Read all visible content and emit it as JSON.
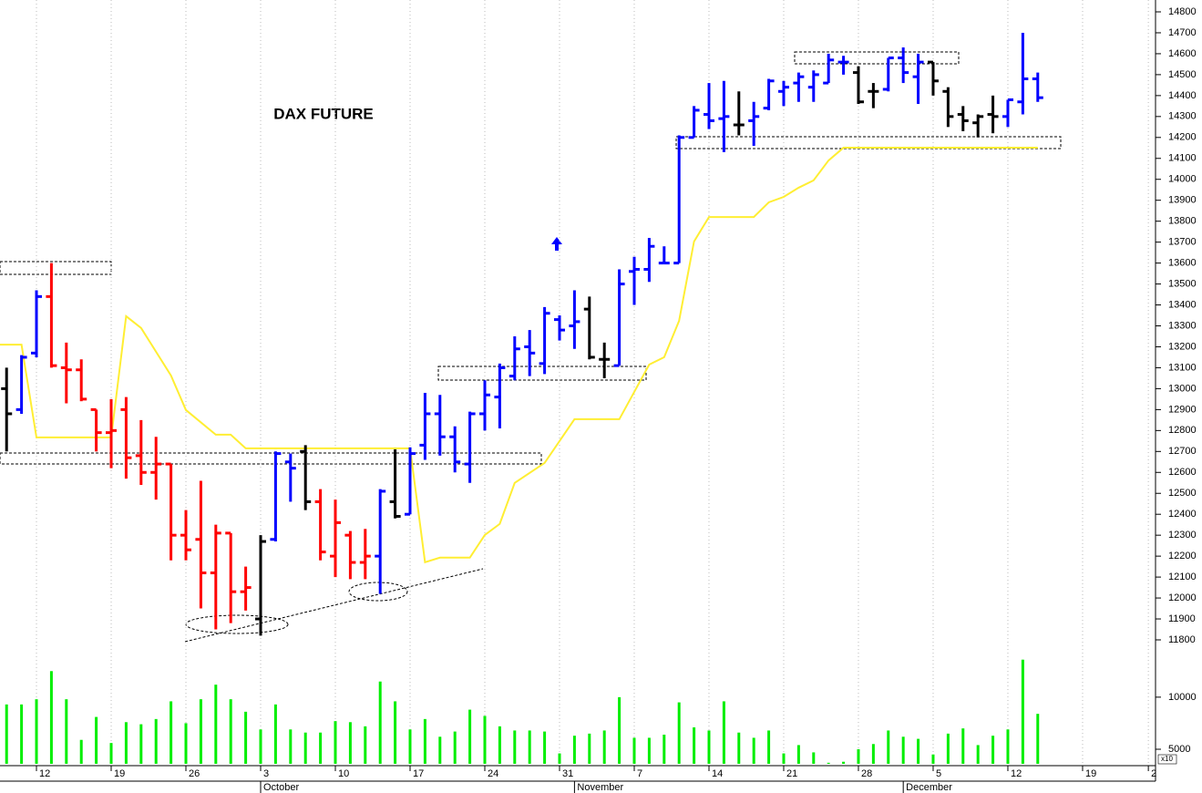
{
  "chart_data": {
    "type": "ohlc",
    "title": "DAX FUTURE",
    "xlim": [
      -2.44,
      74.88
    ],
    "xticks": [
      {
        "value": 0,
        "label": "12"
      },
      {
        "value": 5,
        "label": "19"
      },
      {
        "value": 10,
        "label": "26"
      },
      {
        "value": 15,
        "label": "3"
      },
      {
        "value": 20,
        "label": "10"
      },
      {
        "value": 25,
        "label": "17"
      },
      {
        "value": 30,
        "label": "24"
      },
      {
        "value": 35,
        "label": "31"
      },
      {
        "value": 40,
        "label": "7"
      },
      {
        "value": 45,
        "label": "14"
      },
      {
        "value": 50,
        "label": "21"
      },
      {
        "value": 55,
        "label": "28"
      },
      {
        "value": 60,
        "label": "5"
      },
      {
        "value": 65,
        "label": "12"
      },
      {
        "value": 70,
        "label": "19"
      },
      {
        "value": 74.4,
        "label": "2"
      }
    ],
    "months": [
      {
        "value": 15,
        "label": "October"
      },
      {
        "value": 36,
        "label": "November"
      },
      {
        "value": 58,
        "label": "December"
      }
    ],
    "ylim": [
      11800,
      14800
    ],
    "yticks": [
      11800,
      11900,
      12000,
      12100,
      12200,
      12300,
      12400,
      12500,
      12600,
      12700,
      12800,
      12900,
      13000,
      13100,
      13200,
      13300,
      13400,
      13500,
      13600,
      13700,
      13800,
      13900,
      14000,
      14100,
      14200,
      14300,
      14400,
      14500,
      14600,
      14700,
      14800
    ],
    "grid": true,
    "x": [
      -2,
      -1,
      0,
      1,
      2,
      3,
      4,
      5,
      6,
      7,
      8,
      9,
      10,
      11,
      12,
      13,
      14,
      15,
      16,
      17,
      18,
      19,
      20,
      21,
      22,
      23,
      24,
      25,
      26,
      27,
      28,
      29,
      30,
      31,
      32,
      33,
      34,
      35,
      36,
      37,
      38,
      39,
      40,
      41,
      42,
      43,
      44,
      45,
      46,
      47,
      48,
      49,
      50,
      51,
      52,
      53,
      54,
      55,
      56,
      57,
      58,
      59,
      60,
      61,
      62,
      63,
      64,
      65,
      66,
      67
    ],
    "open": [
      13000,
      12900,
      13170,
      13440,
      13100,
      13090,
      12900,
      12790,
      12900,
      12680,
      12600,
      12640,
      12300,
      12280,
      12120,
      12310,
      12030,
      11900,
      12280,
      12650,
      12700,
      12460,
      12200,
      12300,
      12170,
      12200,
      12460,
      12400,
      12730,
      12880,
      12770,
      12640,
      12880,
      12960,
      13060,
      13200,
      13120,
      13330,
      13300,
      13380,
      13140,
      13110,
      13560,
      13570,
      13600,
      13600,
      14200,
      14310,
      14290,
      14260,
      14280,
      14340,
      14420,
      14460,
      14440,
      14460,
      14560,
      14510,
      14420,
      14430,
      14580,
      14490,
      14560,
      14420,
      14310,
      14270,
      14310,
      14300,
      14370,
      14480
    ],
    "high": [
      13100,
      13160,
      13470,
      13600,
      13220,
      13140,
      12900,
      12950,
      12960,
      12850,
      12770,
      12640,
      12420,
      12560,
      12350,
      12310,
      12150,
      12300,
      12700,
      12690,
      12730,
      12520,
      12470,
      12320,
      12330,
      12520,
      12710,
      12720,
      12980,
      12970,
      12820,
      12890,
      13040,
      13120,
      13250,
      13280,
      13390,
      13350,
      13470,
      13440,
      13220,
      13570,
      13630,
      13720,
      13680,
      14210,
      14350,
      14460,
      14470,
      14420,
      14370,
      14480,
      14470,
      14510,
      14520,
      14600,
      14590,
      14540,
      14460,
      14580,
      14630,
      14600,
      14560,
      14440,
      14350,
      14310,
      14400,
      14380,
      14700,
      14510
    ],
    "low": [
      12700,
      12880,
      13150,
      13100,
      12930,
      12940,
      12700,
      12620,
      12570,
      12540,
      12470,
      12180,
      12180,
      11950,
      11850,
      11880,
      11940,
      11820,
      12270,
      12460,
      12420,
      12180,
      12100,
      12090,
      12090,
      12020,
      12380,
      12400,
      12660,
      12680,
      12600,
      12550,
      12800,
      12810,
      13040,
      13060,
      13070,
      13230,
      13190,
      13140,
      13050,
      13110,
      13400,
      13510,
      13600,
      13600,
      14200,
      14240,
      14130,
      14210,
      14160,
      14330,
      14350,
      14370,
      14370,
      14460,
      14500,
      14360,
      14340,
      14420,
      14460,
      14360,
      14400,
      14250,
      14230,
      14200,
      14220,
      14250,
      14310,
      14370
    ],
    "close": [
      12880,
      13150,
      13440,
      13110,
      13090,
      12950,
      12790,
      12800,
      12670,
      12600,
      12640,
      12300,
      12230,
      12120,
      12310,
      12030,
      12050,
      12270,
      12690,
      12620,
      12460,
      12220,
      12360,
      12170,
      12200,
      12510,
      12390,
      12690,
      12880,
      12770,
      12650,
      12880,
      12970,
      13100,
      13190,
      13170,
      13360,
      13280,
      13320,
      13150,
      13140,
      13500,
      13570,
      13680,
      13600,
      14200,
      14330,
      14280,
      14300,
      14260,
      14300,
      14470,
      14440,
      14490,
      14500,
      14570,
      14560,
      14370,
      14420,
      14580,
      14510,
      14560,
      14470,
      14300,
      14280,
      14300,
      14300,
      14380,
      14480,
      14390
    ],
    "colors": [
      "black",
      "blue",
      "blue",
      "red",
      "red",
      "red",
      "red",
      "red",
      "red",
      "red",
      "red",
      "red",
      "red",
      "red",
      "red",
      "red",
      "red",
      "black",
      "blue",
      "blue",
      "black",
      "red",
      "red",
      "red",
      "red",
      "blue",
      "black",
      "blue",
      "blue",
      "blue",
      "blue",
      "blue",
      "blue",
      "blue",
      "blue",
      "blue",
      "blue",
      "blue",
      "blue",
      "black",
      "black",
      "blue",
      "blue",
      "blue",
      "blue",
      "blue",
      "blue",
      "blue",
      "blue",
      "black",
      "blue",
      "blue",
      "blue",
      "blue",
      "blue",
      "blue",
      "blue",
      "black",
      "black",
      "blue",
      "blue",
      "blue",
      "black",
      "black",
      "black",
      "black",
      "black",
      "blue",
      "blue",
      "blue"
    ],
    "stop_line": {
      "color": "#ffee33",
      "x": [
        -2.44,
        -1,
        0,
        5,
        6,
        7,
        9,
        10,
        12,
        13,
        14,
        24,
        25,
        26,
        27,
        29,
        30,
        31,
        32,
        34,
        36,
        39,
        41,
        42,
        43,
        44,
        45,
        48,
        49,
        50,
        51,
        52,
        53,
        54,
        67
      ],
      "values": [
        13210,
        13210,
        12767,
        12767,
        13346,
        13290,
        13063,
        12898,
        12780,
        12780,
        12715,
        12715,
        12715,
        12171,
        12193,
        12193,
        12301,
        12354,
        12550,
        12645,
        12854,
        12854,
        13115,
        13150,
        13324,
        13703,
        13820,
        13820,
        13890,
        13916,
        13960,
        13995,
        14090,
        14151,
        14151
      ]
    },
    "volume": {
      "color": "#00ee00",
      "ylim": [
        3600,
        14100
      ],
      "yticks": [
        5000,
        10000
      ],
      "unit_label": "x10",
      "values": [
        9300,
        9300,
        9800,
        12500,
        9800,
        5900,
        8100,
        5600,
        7600,
        7400,
        7900,
        9600,
        7500,
        9800,
        11200,
        9800,
        8600,
        6900,
        9300,
        6900,
        6600,
        6600,
        7700,
        7600,
        7200,
        11500,
        9600,
        6900,
        7900,
        6200,
        6700,
        8800,
        8200,
        7200,
        6800,
        6800,
        6700,
        4600,
        6300,
        6500,
        6800,
        10000,
        6100,
        6100,
        6400,
        9500,
        7100,
        6800,
        9600,
        6600,
        6100,
        6800,
        4600,
        5400,
        4700,
        3700,
        3800,
        5000,
        5500,
        6800,
        6200,
        6000,
        4500,
        6500,
        7000,
        5400,
        6300,
        6900,
        13600,
        8400
      ]
    }
  }
}
